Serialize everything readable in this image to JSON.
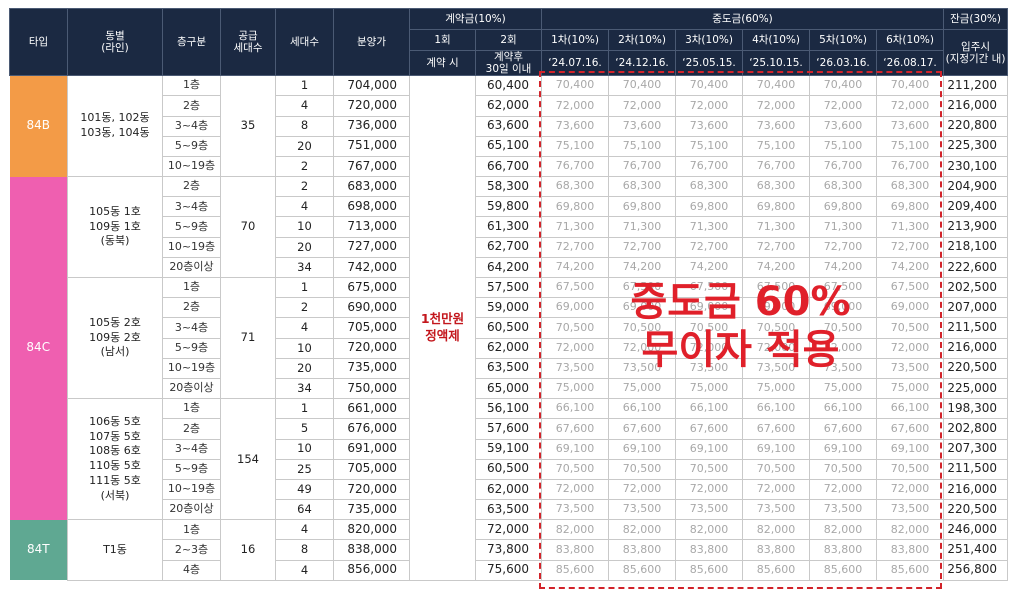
{
  "header": {
    "type": "타입",
    "dong_line": "동별\n(라인)",
    "floor": "층구분",
    "supply_units": "공급\n세대수",
    "units": "세대수",
    "price": "분양가",
    "contract_group": "계약금(10%)",
    "contract_1": "1회",
    "contract_2": "2회",
    "contract_1_when": "계약 시",
    "contract_2_when": "계약후\n30일 이내",
    "mid_group": "중도금(60%)",
    "mid_rounds": [
      "1차(10%)",
      "2차(10%)",
      "3차(10%)",
      "4차(10%)",
      "5차(10%)",
      "6차(10%)"
    ],
    "mid_dates": [
      "‘24.07.16.",
      "‘24.12.16.",
      "‘25.05.15.",
      "‘25.10.15.",
      "‘26.03.16.",
      "‘26.08.17."
    ],
    "balance_group": "잔금(30%)",
    "balance_when": "입주시\n(지정기간 내)"
  },
  "contract_first_note": "1천만원\n정액제",
  "overlay": {
    "line1": "중도금 60%",
    "line2": "무이자 적용"
  },
  "colors": {
    "header_bg": "#1b2942",
    "type_84B": "#f39b47",
    "type_84C": "#ef5fb0",
    "type_84T": "#5fa892",
    "accent_red": "#e0202a"
  },
  "groups": [
    {
      "type": "84B",
      "dongs": [
        {
          "name": "101동, 102동\n103동, 104동",
          "supply": "35",
          "rows": [
            {
              "floor": "1층",
              "units": "1",
              "price": "704,000",
              "c2": "60,400",
              "mid": "70,400",
              "bal": "211,200"
            },
            {
              "floor": "2층",
              "units": "4",
              "price": "720,000",
              "c2": "62,000",
              "mid": "72,000",
              "bal": "216,000"
            },
            {
              "floor": "3~4층",
              "units": "8",
              "price": "736,000",
              "c2": "63,600",
              "mid": "73,600",
              "bal": "220,800"
            },
            {
              "floor": "5~9층",
              "units": "20",
              "price": "751,000",
              "c2": "65,100",
              "mid": "75,100",
              "bal": "225,300"
            },
            {
              "floor": "10~19층",
              "units": "2",
              "price": "767,000",
              "c2": "66,700",
              "mid": "76,700",
              "bal": "230,100"
            }
          ]
        }
      ]
    },
    {
      "type": "84C",
      "dongs": [
        {
          "name": "105동 1호\n109동 1호\n(동북)",
          "supply": "70",
          "rows": [
            {
              "floor": "2층",
              "units": "2",
              "price": "683,000",
              "c2": "58,300",
              "mid": "68,300",
              "bal": "204,900"
            },
            {
              "floor": "3~4층",
              "units": "4",
              "price": "698,000",
              "c2": "59,800",
              "mid": "69,800",
              "bal": "209,400"
            },
            {
              "floor": "5~9층",
              "units": "10",
              "price": "713,000",
              "c2": "61,300",
              "mid": "71,300",
              "bal": "213,900"
            },
            {
              "floor": "10~19층",
              "units": "20",
              "price": "727,000",
              "c2": "62,700",
              "mid": "72,700",
              "bal": "218,100"
            },
            {
              "floor": "20층이상",
              "units": "34",
              "price": "742,000",
              "c2": "64,200",
              "mid": "74,200",
              "bal": "222,600"
            }
          ]
        },
        {
          "name": "105동 2호\n109동 2호\n(남서)",
          "supply": "71",
          "rows": [
            {
              "floor": "1층",
              "units": "1",
              "price": "675,000",
              "c2": "57,500",
              "mid": "67,500",
              "bal": "202,500"
            },
            {
              "floor": "2층",
              "units": "2",
              "price": "690,000",
              "c2": "59,000",
              "mid": "69,000",
              "bal": "207,000"
            },
            {
              "floor": "3~4층",
              "units": "4",
              "price": "705,000",
              "c2": "60,500",
              "mid": "70,500",
              "bal": "211,500"
            },
            {
              "floor": "5~9층",
              "units": "10",
              "price": "720,000",
              "c2": "62,000",
              "mid": "72,000",
              "bal": "216,000"
            },
            {
              "floor": "10~19층",
              "units": "20",
              "price": "735,000",
              "c2": "63,500",
              "mid": "73,500",
              "bal": "220,500"
            },
            {
              "floor": "20층이상",
              "units": "34",
              "price": "750,000",
              "c2": "65,000",
              "mid": "75,000",
              "bal": "225,000"
            }
          ]
        },
        {
          "name": "106동 5호\n107동 5호\n108동 6호\n110동 5호\n111동 5호\n(서북)",
          "supply": "154",
          "rows": [
            {
              "floor": "1층",
              "units": "1",
              "price": "661,000",
              "c2": "56,100",
              "mid": "66,100",
              "bal": "198,300"
            },
            {
              "floor": "2층",
              "units": "5",
              "price": "676,000",
              "c2": "57,600",
              "mid": "67,600",
              "bal": "202,800"
            },
            {
              "floor": "3~4층",
              "units": "10",
              "price": "691,000",
              "c2": "59,100",
              "mid": "69,100",
              "bal": "207,300"
            },
            {
              "floor": "5~9층",
              "units": "25",
              "price": "705,000",
              "c2": "60,500",
              "mid": "70,500",
              "bal": "211,500"
            },
            {
              "floor": "10~19층",
              "units": "49",
              "price": "720,000",
              "c2": "62,000",
              "mid": "72,000",
              "bal": "216,000"
            },
            {
              "floor": "20층이상",
              "units": "64",
              "price": "735,000",
              "c2": "63,500",
              "mid": "73,500",
              "bal": "220,500"
            }
          ]
        }
      ]
    },
    {
      "type": "84T",
      "dongs": [
        {
          "name": "T1동",
          "supply": "16",
          "rows": [
            {
              "floor": "1층",
              "units": "4",
              "price": "820,000",
              "c2": "72,000",
              "mid": "82,000",
              "bal": "246,000"
            },
            {
              "floor": "2~3층",
              "units": "8",
              "price": "838,000",
              "c2": "73,800",
              "mid": "83,800",
              "bal": "251,400"
            },
            {
              "floor": "4층",
              "units": "4",
              "price": "856,000",
              "c2": "75,600",
              "mid": "85,600",
              "bal": "256,800"
            }
          ]
        }
      ]
    }
  ]
}
